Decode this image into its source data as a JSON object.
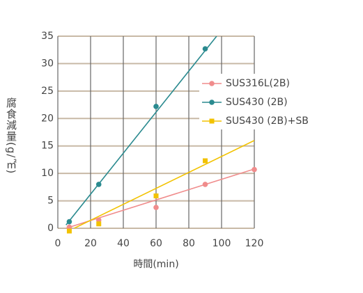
{
  "chart_data": {
    "type": "scatter",
    "x_label": "時間(min)",
    "y_label": "腐食減量(g/㎡)",
    "xlim": [
      0,
      120
    ],
    "xticks": [
      0,
      20,
      40,
      60,
      80,
      100,
      120
    ],
    "ylim": [
      0,
      35
    ],
    "yticks": [
      0,
      5,
      10,
      15,
      20,
      25,
      30,
      35
    ],
    "grid": true,
    "legend": "right",
    "series": [
      {
        "name": "SUS316L(2B)",
        "color": "#f08c8c",
        "marker": "circle",
        "x": [
          7,
          25,
          60,
          90,
          120
        ],
        "values": [
          0.2,
          1.5,
          3.8,
          8,
          10.7
        ],
        "fit_x": [
          5,
          120
        ],
        "fit_values": [
          0,
          10.8
        ]
      },
      {
        "name": "SUS430 (2B)",
        "color": "#2a8a8f",
        "marker": "circle",
        "x": [
          7,
          25,
          60,
          90
        ],
        "values": [
          1.2,
          8,
          22.2,
          32.7
        ],
        "fit_x": [
          5,
          97
        ],
        "fit_values": [
          0.6,
          35
        ]
      },
      {
        "name": "SUS430 (2B)+SB",
        "color": "#f2c200",
        "marker": "square",
        "x": [
          7,
          25,
          60,
          90
        ],
        "values": [
          -0.5,
          0.8,
          5.9,
          12.3
        ],
        "fit_x": [
          10,
          120
        ],
        "fit_values": [
          0,
          16
        ]
      }
    ]
  }
}
